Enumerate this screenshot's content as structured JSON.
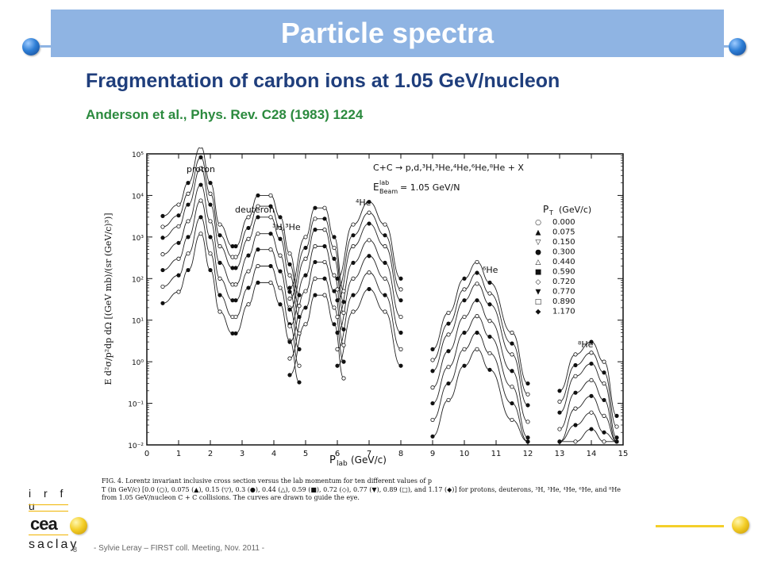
{
  "slide": {
    "title": "Particle spectra",
    "subtitle": "Fragmentation of carbon ions at 1.05 GeV/nucleon",
    "reference": "Anderson et al., Phys. Rev. C28 (1983) 1224",
    "page_number": "8",
    "footer": "- Sylvie Leray – FIRST coll. Meeting, Nov. 2011 -",
    "colors": {
      "title_bar": "#8fb4e3",
      "subtitle": "#1f3e7c",
      "reference": "#2b8a3e",
      "accent_yellow": "#f4cf2a"
    }
  },
  "logo": {
    "line1": "i r f u",
    "line2": "cea",
    "line3": "saclay"
  },
  "figure": {
    "reaction": "C+C → p,d,³H,³He,⁴He,⁶He,⁸He + X",
    "beam_energy": "E",
    "beam_sup": "lab",
    "beam_sub": "Beam",
    "beam_value": "= 1.05 GeV/N",
    "legend_title": "P",
    "legend_title_sub": "T",
    "legend_title_unit": "(GeV/c)",
    "legend_values": [
      "0.000",
      "0.075",
      "0.150",
      "0.300",
      "0.440",
      "0.590",
      "0.720",
      "0.770",
      "0.890",
      "1.170"
    ],
    "legend_symbols": [
      "○",
      "▲",
      "▽",
      "●",
      "△",
      "■",
      "◇",
      "▼",
      "□",
      "◆"
    ],
    "particle_labels": [
      "proton",
      "deuteron",
      "³H,³He",
      "⁴He",
      "⁶He",
      "⁸He"
    ],
    "y_axis_label": "E d²σ/p²dp dΩ [(GeV mb)/(sr (GeV/c)³)]",
    "x_axis_label": "P",
    "x_axis_sub": "lab",
    "x_axis_unit": "(GeV/c)",
    "caption": "FIG. 4. Lorentz invariant inclusive cross section versus the lab momentum for ten different values of p",
    "caption_cont": "T (in GeV/c) [0.0 (○), 0.075 (▲), 0.15 (▽), 0.3 (●), 0.44 (△), 0.59 (■), 0.72 (◇), 0.77 (▼), 0.89 (□), and 1.17 (◆)] for protons, deuterons, ³H, ³He, ⁴He, ⁶He, and ⁸He from 1.05 GeV/nucleon C + C collisions. The curves are drawn to guide the eye.",
    "chart_data": {
      "type": "scatter",
      "xlim": [
        0,
        15
      ],
      "ylim_log10": [
        -2,
        5
      ],
      "x_ticks": [
        "0",
        "1",
        "2",
        "3",
        "4",
        "5",
        "6",
        "7",
        "8",
        "9",
        "10",
        "11",
        "12",
        "13",
        "14",
        "15"
      ],
      "y_ticks": [
        "10⁻²",
        "10⁻¹",
        "10⁰",
        "10¹",
        "10²",
        "10³",
        "10⁴",
        "10⁵"
      ],
      "log_y": true,
      "series": [
        {
          "name": "proton",
          "points": [
            [
              0.5,
              3200.0
            ],
            [
              1.0,
              6000.0
            ],
            [
              1.3,
              20000.0
            ],
            [
              1.7,
              150000.0
            ],
            [
              2.0,
              20000.0
            ],
            [
              2.3,
              2000.0
            ],
            [
              2.7,
              600.0
            ]
          ]
        },
        {
          "name": "deuteron",
          "points": [
            [
              2.8,
              600.0
            ],
            [
              3.2,
              3000.0
            ],
            [
              3.5,
              10000.0
            ],
            [
              3.9,
              10000.0
            ],
            [
              4.2,
              3000.0
            ],
            [
              4.5,
              400.0
            ],
            [
              4.8,
              40
            ]
          ]
        },
        {
          "name": "³H,³He",
          "points": [
            [
              4.5,
              60
            ],
            [
              5.0,
              1000.0
            ],
            [
              5.3,
              5000.0
            ],
            [
              5.6,
              5000.0
            ],
            [
              5.9,
              1000.0
            ],
            [
              6.2,
              50
            ]
          ]
        },
        {
          "name": "⁴He",
          "points": [
            [
              6.0,
              100
            ],
            [
              6.5,
              2000.0
            ],
            [
              7.0,
              7000.0
            ],
            [
              7.5,
              2000.0
            ],
            [
              8.0,
              100
            ]
          ]
        },
        {
          "name": "⁶He",
          "points": [
            [
              9.0,
              2
            ],
            [
              9.5,
              15
            ],
            [
              10.0,
              100
            ],
            [
              10.4,
              250
            ],
            [
              10.8,
              80
            ],
            [
              11.5,
              5
            ],
            [
              12.0,
              0.3
            ]
          ]
        },
        {
          "name": "⁸He",
          "points": [
            [
              13.0,
              0.2
            ],
            [
              13.5,
              1.5
            ],
            [
              14.0,
              3
            ],
            [
              14.4,
              1
            ],
            [
              14.8,
              0.05
            ]
          ]
        }
      ]
    }
  }
}
